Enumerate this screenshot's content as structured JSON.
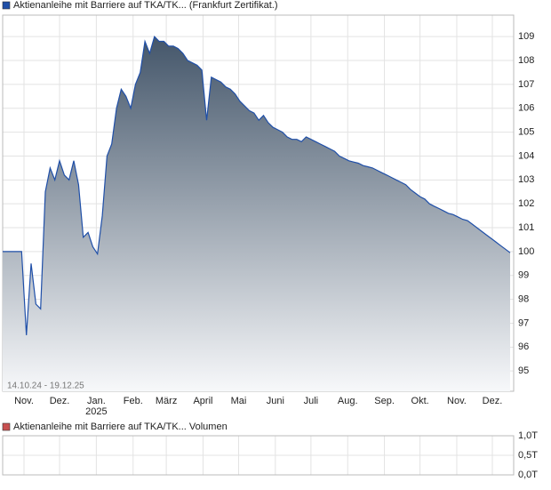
{
  "chart_data": [
    {
      "type": "area",
      "legend": "Aktienanleihe mit Barriere auf TKA/TK... (Frankfurt Zertifikat.)",
      "date_range": "14.10.24 - 19.12.25",
      "color": "#1f4fa8",
      "values": [
        100,
        100,
        100,
        100,
        100,
        96.5,
        99.5,
        97.8,
        97.6,
        102.5,
        103.5,
        103,
        103.8,
        103.2,
        103,
        103.8,
        102.8,
        100.6,
        100.8,
        100.2,
        99.9,
        101.5,
        104,
        104.5,
        106,
        106.8,
        106.5,
        106,
        107,
        107.5,
        108.8,
        108.3,
        109,
        108.8,
        108.8,
        108.6,
        108.6,
        108.5,
        108.3,
        108,
        107.9,
        107.8,
        107.6,
        105.5,
        107.3,
        107.2,
        107.1,
        106.9,
        106.8,
        106.6,
        106.3,
        106.1,
        105.9,
        105.8,
        105.5,
        105.7,
        105.4,
        105.2,
        105.1,
        105,
        104.8,
        104.7,
        104.7,
        104.6,
        104.8,
        104.7,
        104.6,
        104.5,
        104.4,
        104.3,
        104.2,
        104,
        103.9,
        103.8,
        103.75,
        103.7,
        103.6,
        103.55,
        103.5,
        103.4,
        103.3,
        103.2,
        103.1,
        103,
        102.9,
        102.8,
        102.6,
        102.45,
        102.3,
        102.2,
        102,
        101.9,
        101.8,
        101.7,
        101.6,
        101.55,
        101.45,
        101.35,
        101.3,
        101.15,
        101,
        100.85,
        100.7,
        100.55,
        100.4,
        100.25,
        100.1,
        99.95
      ],
      "xlim": [
        0,
        107.75
      ],
      "xticks": [
        {
          "value": 4.5,
          "label": "Nov."
        },
        {
          "value": 12,
          "label": "Dez."
        },
        {
          "value": 19.75,
          "label": "Jan."
        },
        {
          "value": 27.5,
          "label": "Feb."
        },
        {
          "value": 34.5,
          "label": "März"
        },
        {
          "value": 42.25,
          "label": "April"
        },
        {
          "value": 49.75,
          "label": "Mai"
        },
        {
          "value": 57.5,
          "label": "Juni"
        },
        {
          "value": 65,
          "label": "Juli"
        },
        {
          "value": 72.75,
          "label": "Aug."
        },
        {
          "value": 80.5,
          "label": "Sep."
        },
        {
          "value": 88,
          "label": "Okt."
        },
        {
          "value": 95.75,
          "label": "Nov."
        },
        {
          "value": 103.25,
          "label": "Dez."
        }
      ],
      "year_label": "2025",
      "ylim": [
        94.15,
        109.9
      ],
      "yticks": [
        95,
        96,
        97,
        98,
        99,
        100,
        101,
        102,
        103,
        104,
        105,
        106,
        107,
        108,
        109
      ],
      "grid": true
    },
    {
      "type": "bar",
      "legend": "Aktienanleihe mit Barriere auf TKA/TK... Volumen",
      "color": "#c85050",
      "ylim": [
        0,
        1
      ],
      "yticks": [
        {
          "value": 0,
          "label": "0,0T"
        },
        {
          "value": 0.5,
          "label": "0,5T"
        },
        {
          "value": 1,
          "label": "1,0T"
        }
      ],
      "grid": true
    }
  ]
}
